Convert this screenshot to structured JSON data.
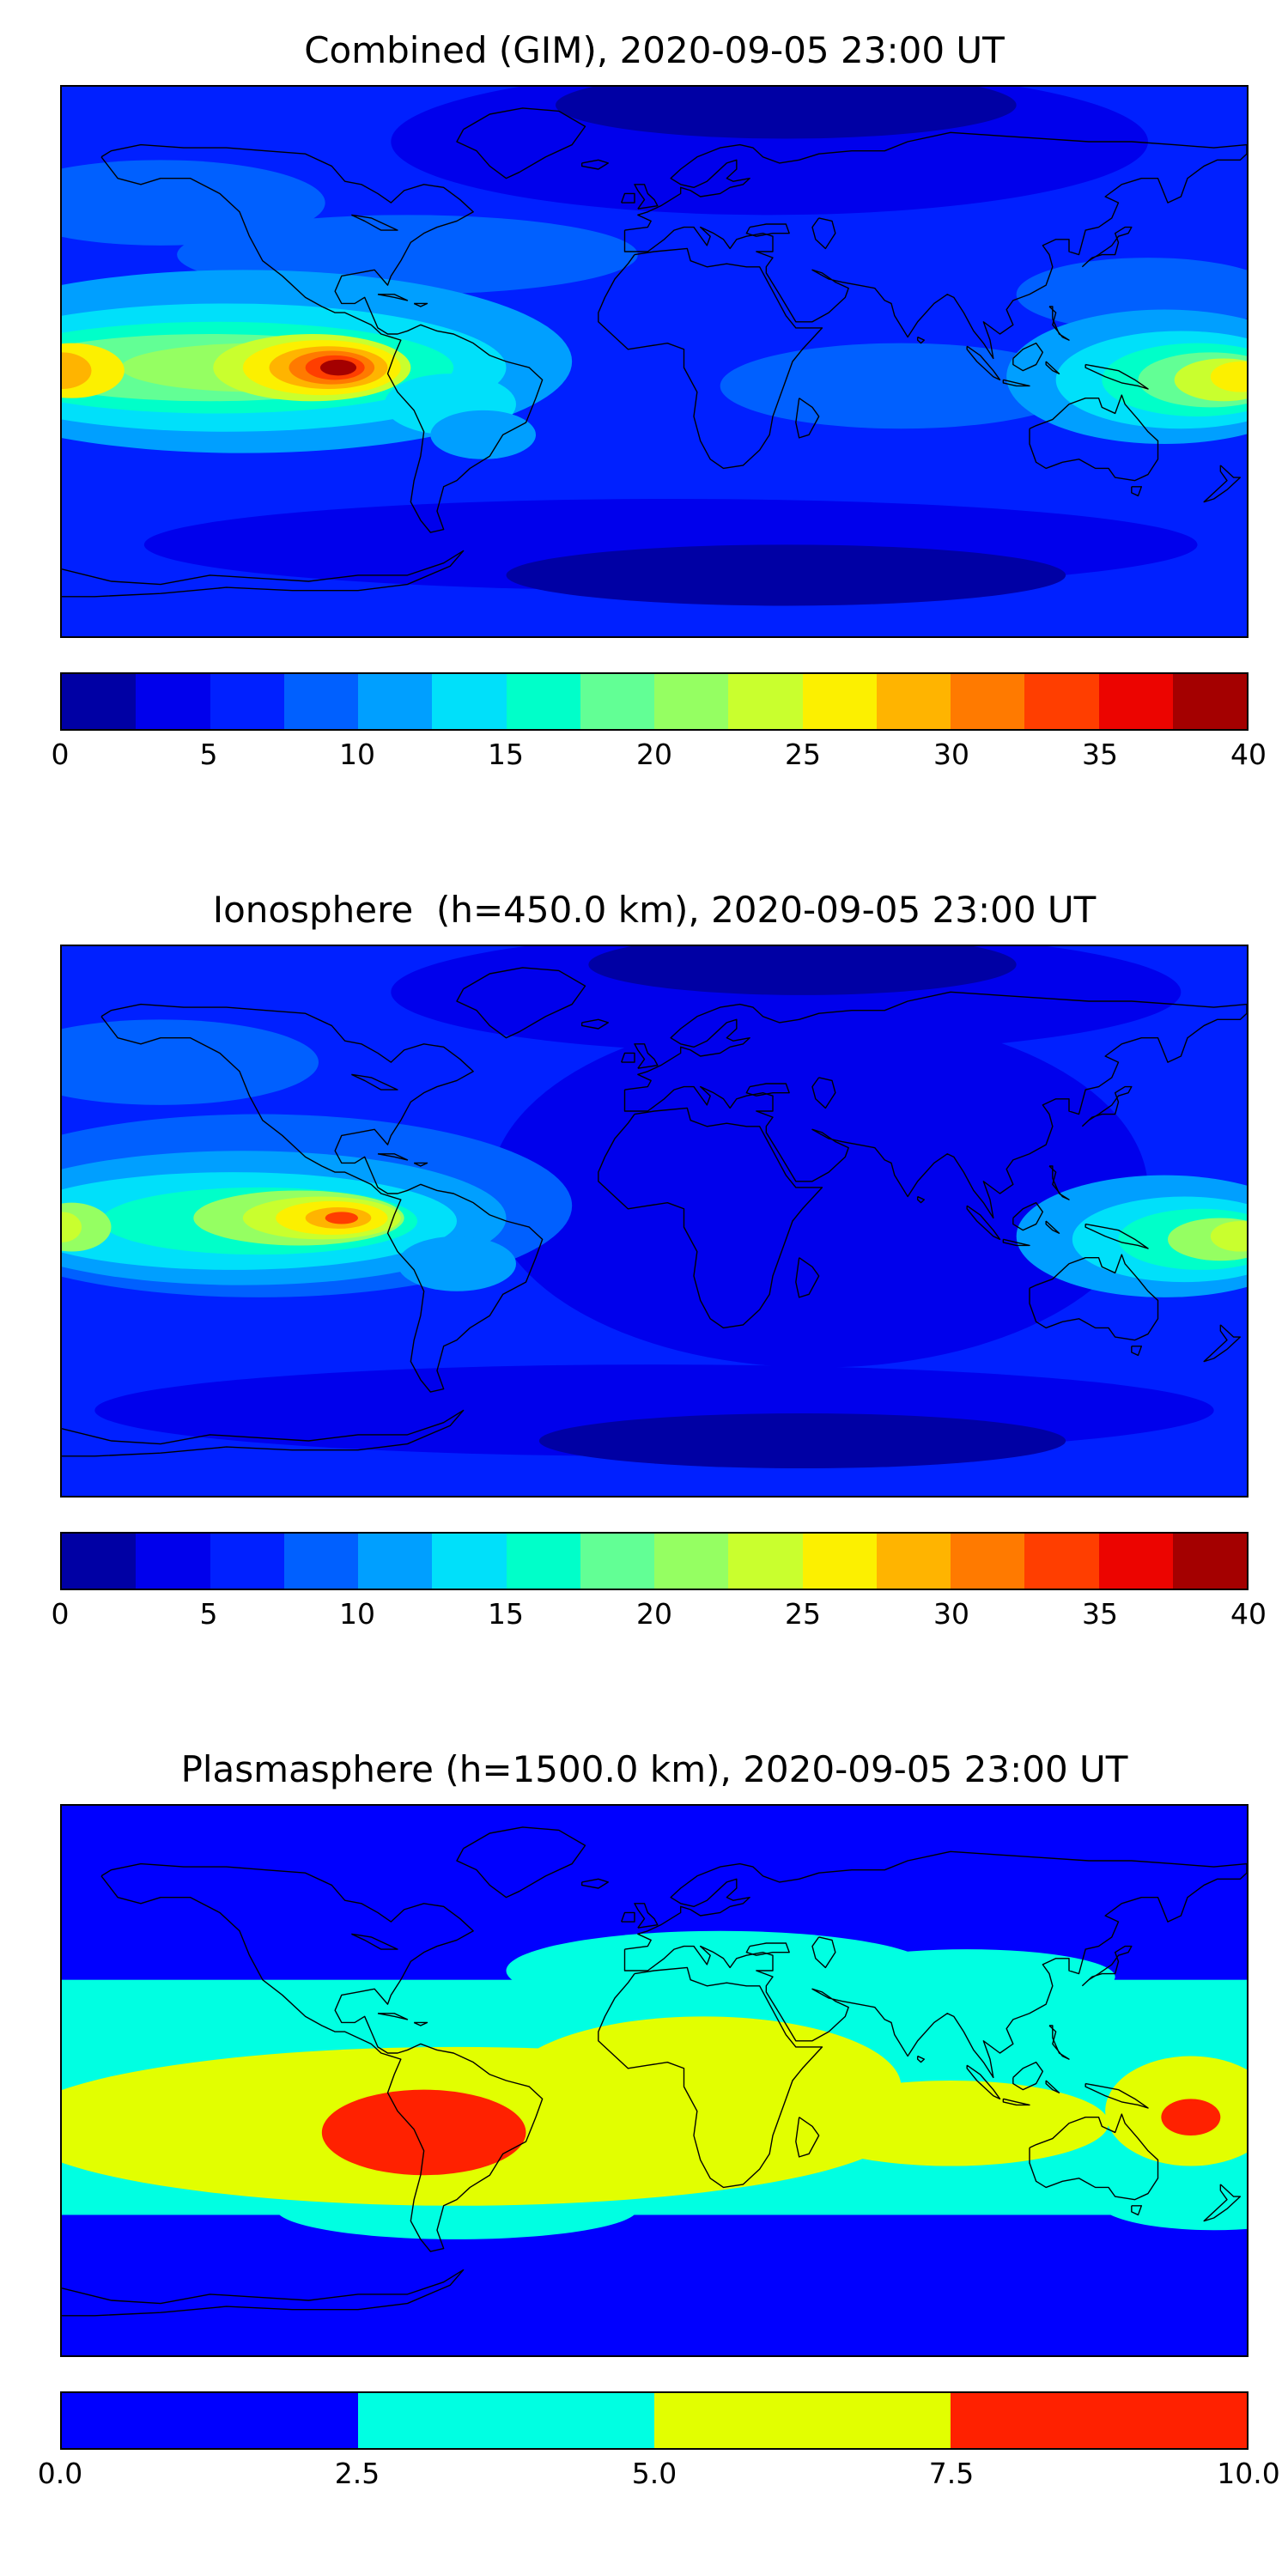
{
  "panels": [
    {
      "title": "Combined (GIM), 2020-09-05 23:00 UT",
      "colorbar": {
        "min": 0,
        "max": 40,
        "ticks": [
          "0",
          "5",
          "10",
          "15",
          "20",
          "25",
          "30",
          "35",
          "40"
        ],
        "colors": [
          "#0000a4",
          "#0000ec",
          "#0020ff",
          "#0060ff",
          "#009fff",
          "#00e0fa",
          "#00ffc9",
          "#62ff95",
          "#95ff62",
          "#c9ff2e",
          "#fcf000",
          "#ffb400",
          "#ff7a00",
          "#ff3e00",
          "#ec0400",
          "#a40000"
        ]
      }
    },
    {
      "title": "Ionosphere  (h=450.0 km), 2020-09-05 23:00 UT",
      "colorbar": {
        "min": 0,
        "max": 40,
        "ticks": [
          "0",
          "5",
          "10",
          "15",
          "20",
          "25",
          "30",
          "35",
          "40"
        ],
        "colors": [
          "#0000a4",
          "#0000ec",
          "#0020ff",
          "#0060ff",
          "#009fff",
          "#00e0fa",
          "#00ffc9",
          "#62ff95",
          "#95ff62",
          "#c9ff2e",
          "#fcf000",
          "#ffb400",
          "#ff7a00",
          "#ff3e00",
          "#ec0400",
          "#a40000"
        ]
      }
    },
    {
      "title": "Plasmasphere (h=1500.0 km), 2020-09-05 23:00 UT",
      "colorbar": {
        "min": 0,
        "max": 10,
        "ticks": [
          "0.0",
          "2.5",
          "5.0",
          "7.5",
          "10.0"
        ],
        "colors": [
          "#0000ff",
          "#00ffe2",
          "#e2ff00",
          "#ff2100"
        ]
      }
    }
  ],
  "chart_data": [
    {
      "type": "heatmap",
      "title": "Combined (GIM), 2020-09-05 23:00 UT",
      "projection": "equirectangular",
      "lon_range": [
        -180,
        180
      ],
      "lat_range": [
        -90,
        90
      ],
      "levels": [
        0,
        2.5,
        5,
        7.5,
        10,
        12.5,
        15,
        17.5,
        20,
        22.5,
        25,
        27.5,
        30,
        32.5,
        35,
        37.5,
        40
      ],
      "colormap": "jet",
      "legend_position": "horizontal colorbar below map",
      "base_color": "#0020ff",
      "background_value": 6,
      "peaks": [
        {
          "lon": -97,
          "lat": -2,
          "value": 40,
          "note": "equatorial anomaly maximum, eastern Pacific off South America"
        },
        {
          "lon": -178,
          "lat": -3,
          "value": 32,
          "note": "secondary maximum at west map edge"
        },
        {
          "lon": 173,
          "lat": -6,
          "value": 26,
          "note": "western Pacific enhancement"
        }
      ],
      "lows": [
        {
          "region": "north polar cap (lon 0..90)",
          "value": 1.5
        },
        {
          "region": "southern high latitudes",
          "value": 2.5
        }
      ],
      "regions": [
        {
          "shape": "ellipse",
          "lon": 35,
          "lat": 72,
          "rx": 115,
          "ry": 24,
          "color": "#0000ec"
        },
        {
          "shape": "ellipse",
          "lon": 40,
          "lat": 84,
          "rx": 70,
          "ry": 11,
          "color": "#0000a4"
        },
        {
          "shape": "ellipse",
          "lon": 5,
          "lat": -60,
          "rx": 160,
          "ry": 15,
          "color": "#0000ec"
        },
        {
          "shape": "ellipse",
          "lon": 40,
          "lat": -70,
          "rx": 85,
          "ry": 10,
          "color": "#0000a4"
        },
        {
          "shape": "ellipse",
          "lon": -150,
          "lat": 52,
          "rx": 50,
          "ry": 14,
          "color": "#0060ff"
        },
        {
          "shape": "ellipse",
          "lon": -75,
          "lat": 35,
          "rx": 70,
          "ry": 13,
          "color": "#0060ff"
        },
        {
          "shape": "ellipse",
          "lon": 75,
          "lat": -8,
          "rx": 55,
          "ry": 14,
          "color": "#0060ff"
        },
        {
          "shape": "ellipse",
          "lon": 150,
          "lat": 22,
          "rx": 40,
          "ry": 12,
          "color": "#0060ff"
        },
        {
          "shape": "ellipse",
          "lon": -125,
          "lat": 0,
          "rx": 100,
          "ry": 30,
          "color": "#009fff"
        },
        {
          "shape": "ellipse",
          "lon": -130,
          "lat": -2,
          "rx": 85,
          "ry": 21,
          "color": "#00e0fa"
        },
        {
          "shape": "ellipse",
          "lon": -133,
          "lat": -2,
          "rx": 72,
          "ry": 15,
          "color": "#00ffc9"
        },
        {
          "shape": "ellipse",
          "lon": -135,
          "lat": -2,
          "rx": 60,
          "ry": 11,
          "color": "#62ff95"
        },
        {
          "shape": "ellipse",
          "lon": -120,
          "lat": -2,
          "rx": 42,
          "ry": 8,
          "color": "#95ff62"
        },
        {
          "shape": "ellipse",
          "lon": -104,
          "lat": -2,
          "rx": 30,
          "ry": 11,
          "color": "#c9ff2e"
        },
        {
          "shape": "ellipse",
          "lon": -101,
          "lat": -2,
          "rx": 24,
          "ry": 9,
          "color": "#fcf000"
        },
        {
          "shape": "ellipse",
          "lon": -99,
          "lat": -2,
          "rx": 18,
          "ry": 7,
          "color": "#ffb400"
        },
        {
          "shape": "ellipse",
          "lon": -98,
          "lat": -2,
          "rx": 13,
          "ry": 5.5,
          "color": "#ff7a00"
        },
        {
          "shape": "ellipse",
          "lon": -97,
          "lat": -2,
          "rx": 9,
          "ry": 4,
          "color": "#ff3e00"
        },
        {
          "shape": "ellipse",
          "lon": -96,
          "lat": -2,
          "rx": 5.5,
          "ry": 2.6,
          "color": "#a40000"
        },
        {
          "shape": "ellipse",
          "lon": -177,
          "lat": -3,
          "rx": 16,
          "ry": 9,
          "color": "#fcf000"
        },
        {
          "shape": "ellipse",
          "lon": -180,
          "lat": -3,
          "rx": 9,
          "ry": 6,
          "color": "#ffb400"
        },
        {
          "shape": "ellipse",
          "lon": -62,
          "lat": -14,
          "rx": 20,
          "ry": 10,
          "color": "#00e0fa"
        },
        {
          "shape": "ellipse",
          "lon": -52,
          "lat": -24,
          "rx": 16,
          "ry": 8,
          "color": "#009fff"
        },
        {
          "shape": "ellipse",
          "lon": 155,
          "lat": -5,
          "rx": 48,
          "ry": 22,
          "color": "#009fff"
        },
        {
          "shape": "ellipse",
          "lon": 160,
          "lat": -6,
          "rx": 38,
          "ry": 16,
          "color": "#00e0fa"
        },
        {
          "shape": "ellipse",
          "lon": 165,
          "lat": -6,
          "rx": 29,
          "ry": 12,
          "color": "#00ffc9"
        },
        {
          "shape": "ellipse",
          "lon": 169,
          "lat": -6,
          "rx": 22,
          "ry": 9,
          "color": "#62ff95"
        },
        {
          "shape": "ellipse",
          "lon": 173,
          "lat": -6,
          "rx": 15,
          "ry": 7,
          "color": "#c9ff2e"
        },
        {
          "shape": "ellipse",
          "lon": 178,
          "lat": -5,
          "rx": 9,
          "ry": 5,
          "color": "#fcf000"
        }
      ]
    },
    {
      "type": "heatmap",
      "title": "Ionosphere  (h=450.0 km), 2020-09-05 23:00 UT",
      "projection": "equirectangular",
      "lon_range": [
        -180,
        180
      ],
      "lat_range": [
        -90,
        90
      ],
      "levels": [
        0,
        2.5,
        5,
        7.5,
        10,
        12.5,
        15,
        17.5,
        20,
        22.5,
        25,
        27.5,
        30,
        32.5,
        35,
        37.5,
        40
      ],
      "colormap": "jet",
      "legend_position": "horizontal colorbar below map",
      "base_color": "#0020ff",
      "background_value": 5,
      "peaks": [
        {
          "lon": -96,
          "lat": 1,
          "value": 28,
          "note": "eastern Pacific anomaly maximum"
        },
        {
          "lon": -179,
          "lat": -2,
          "value": 22,
          "note": "west map-edge enhancement"
        },
        {
          "lon": 172,
          "lat": -6,
          "value": 20,
          "note": "western Pacific enhancement"
        }
      ],
      "lows": [
        {
          "region": "broad minimum over Africa / Asia / Indian Ocean",
          "value": 3
        },
        {
          "region": "north polar cap",
          "value": 1.5
        },
        {
          "region": "southern high latitudes",
          "value": 2.5
        }
      ],
      "regions": [
        {
          "shape": "ellipse",
          "lon": 50,
          "lat": 10,
          "rx": 100,
          "ry": 58,
          "color": "#0000ec"
        },
        {
          "shape": "ellipse",
          "lon": 40,
          "lat": 75,
          "rx": 120,
          "ry": 20,
          "color": "#0000ec"
        },
        {
          "shape": "ellipse",
          "lon": 45,
          "lat": 84,
          "rx": 65,
          "ry": 10,
          "color": "#0000a4"
        },
        {
          "shape": "ellipse",
          "lon": 0,
          "lat": -62,
          "rx": 170,
          "ry": 15,
          "color": "#0000ec"
        },
        {
          "shape": "ellipse",
          "lon": 45,
          "lat": -72,
          "rx": 80,
          "ry": 9,
          "color": "#0000a4"
        },
        {
          "shape": "ellipse",
          "lon": -150,
          "lat": 52,
          "rx": 48,
          "ry": 14,
          "color": "#0060ff"
        },
        {
          "shape": "ellipse",
          "lon": -120,
          "lat": 5,
          "rx": 95,
          "ry": 30,
          "color": "#0060ff"
        },
        {
          "shape": "ellipse",
          "lon": -125,
          "lat": 1,
          "rx": 80,
          "ry": 22,
          "color": "#009fff"
        },
        {
          "shape": "ellipse",
          "lon": -128,
          "lat": 0,
          "rx": 68,
          "ry": 16,
          "color": "#00e0fa"
        },
        {
          "shape": "ellipse",
          "lon": -120,
          "lat": 0,
          "rx": 48,
          "ry": 11,
          "color": "#00ffc9"
        },
        {
          "shape": "ellipse",
          "lon": -108,
          "lat": 1,
          "rx": 32,
          "ry": 9,
          "color": "#95ff62"
        },
        {
          "shape": "ellipse",
          "lon": -101,
          "lat": 1,
          "rx": 24,
          "ry": 7,
          "color": "#c9ff2e"
        },
        {
          "shape": "ellipse",
          "lon": -98,
          "lat": 1,
          "rx": 17,
          "ry": 5.5,
          "color": "#fcf000"
        },
        {
          "shape": "ellipse",
          "lon": -96,
          "lat": 1,
          "rx": 10,
          "ry": 3.5,
          "color": "#ffb400"
        },
        {
          "shape": "ellipse",
          "lon": -95,
          "lat": 1,
          "rx": 5,
          "ry": 2,
          "color": "#ff3e00"
        },
        {
          "shape": "ellipse",
          "lon": -177,
          "lat": -2,
          "rx": 12,
          "ry": 8,
          "color": "#95ff62"
        },
        {
          "shape": "ellipse",
          "lon": -180,
          "lat": -2,
          "rx": 6,
          "ry": 5,
          "color": "#c9ff2e"
        },
        {
          "shape": "ellipse",
          "lon": -60,
          "lat": -14,
          "rx": 18,
          "ry": 9,
          "color": "#009fff"
        },
        {
          "shape": "ellipse",
          "lon": 155,
          "lat": -5,
          "rx": 45,
          "ry": 20,
          "color": "#009fff"
        },
        {
          "shape": "ellipse",
          "lon": 161,
          "lat": -6,
          "rx": 34,
          "ry": 14,
          "color": "#00e0fa"
        },
        {
          "shape": "ellipse",
          "lon": 166,
          "lat": -6,
          "rx": 25,
          "ry": 10,
          "color": "#00ffc9"
        },
        {
          "shape": "ellipse",
          "lon": 172,
          "lat": -6,
          "rx": 16,
          "ry": 7,
          "color": "#95ff62"
        },
        {
          "shape": "ellipse",
          "lon": 178,
          "lat": -5,
          "rx": 9,
          "ry": 5,
          "color": "#c9ff2e"
        }
      ]
    },
    {
      "type": "heatmap",
      "title": "Plasmasphere (h=1500.0 km), 2020-09-05 23:00 UT",
      "projection": "equirectangular",
      "lon_range": [
        -180,
        180
      ],
      "lat_range": [
        -90,
        90
      ],
      "levels": [
        0,
        2.5,
        5,
        7.5,
        10
      ],
      "colormap": "jet (4 discrete bands)",
      "legend_position": "horizontal colorbar below map",
      "base_color": "#0000ff",
      "bands": [
        {
          "range": "0-2.5",
          "color": "#0000ff",
          "where": "high latitudes, poleward of about ±45°"
        },
        {
          "range": "2.5-5",
          "color": "#00ffe2",
          "where": "wavy mid-latitude belt, about -50°..+48°"
        },
        {
          "range": "5-7.5",
          "color": "#e2ff00",
          "where": "low-latitude belt, widest over South America and Africa"
        },
        {
          "range": "7.5-10",
          "color": "#ff2100",
          "where": "maximum over central South America; small spot near 163°E"
        }
      ],
      "peaks": [
        {
          "lon": -70,
          "lat": -17,
          "value": 8.5,
          "note": "large red maximum over South America"
        },
        {
          "lon": 163,
          "lat": -12,
          "value": 8,
          "note": "small red spot, western Pacific"
        }
      ],
      "regions": [
        {
          "shape": "rect",
          "lon0": -180,
          "lon1": 180,
          "lat0": -44,
          "lat1": 33,
          "color": "#00ffe2"
        },
        {
          "shape": "ellipse",
          "lon": 20,
          "lat": 36,
          "rx": 65,
          "ry": 13,
          "color": "#00ffe2"
        },
        {
          "shape": "ellipse",
          "lon": 95,
          "lat": 34,
          "rx": 45,
          "ry": 9,
          "color": "#00ffe2"
        },
        {
          "shape": "ellipse",
          "lon": -60,
          "lat": -42,
          "rx": 55,
          "ry": 10,
          "color": "#00ffe2"
        },
        {
          "shape": "ellipse",
          "lon": 170,
          "lat": -40,
          "rx": 35,
          "ry": 9,
          "color": "#00ffe2"
        },
        {
          "shape": "ellipse",
          "lon": -60,
          "lat": -15,
          "rx": 135,
          "ry": 26,
          "color": "#e2ff00"
        },
        {
          "shape": "ellipse",
          "lon": 15,
          "lat": -2,
          "rx": 60,
          "ry": 23,
          "color": "#e2ff00"
        },
        {
          "shape": "ellipse",
          "lon": 90,
          "lat": -14,
          "rx": 48,
          "ry": 14,
          "color": "#e2ff00"
        },
        {
          "shape": "ellipse",
          "lon": 163,
          "lat": -10,
          "rx": 26,
          "ry": 18,
          "color": "#e2ff00"
        },
        {
          "shape": "ellipse",
          "lon": -70,
          "lat": -17,
          "rx": 31,
          "ry": 14,
          "color": "#ff2100"
        },
        {
          "shape": "ellipse",
          "lon": 163,
          "lat": -12,
          "rx": 9,
          "ry": 6,
          "color": "#ff2100"
        }
      ]
    }
  ]
}
